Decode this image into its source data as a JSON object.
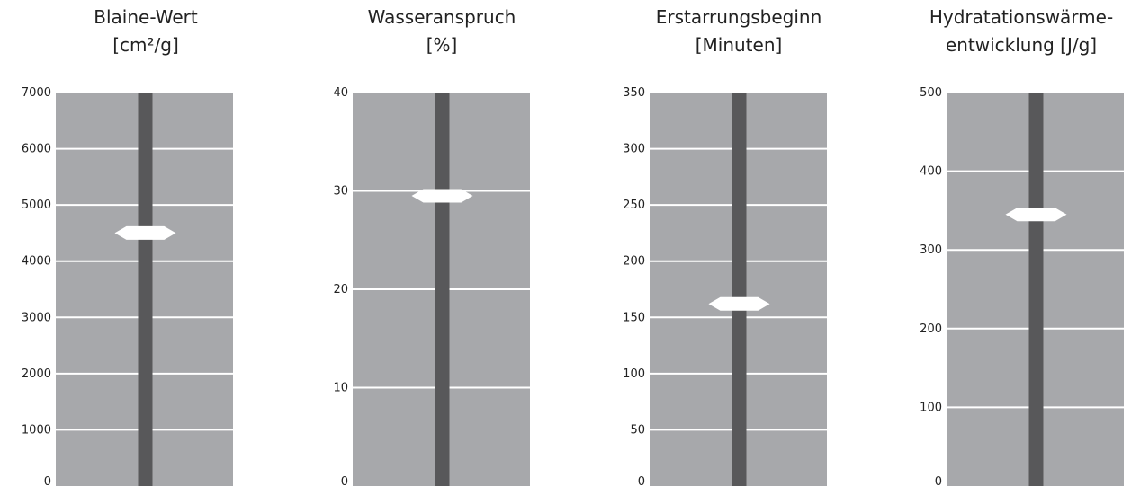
{
  "colors": {
    "panel": "#a7a8ab",
    "gridline": "#ffffff",
    "bar": "#58585a",
    "marker": "#ffffff",
    "text": "#222222"
  },
  "chart_data": [
    {
      "type": "bar",
      "title_line1": "Blaine-Wert",
      "title_line2": "[cm²/g]",
      "ylim": [
        0,
        7000
      ],
      "yticks": [
        0,
        1000,
        2000,
        3000,
        4000,
        5000,
        6000,
        7000
      ],
      "value": 4500
    },
    {
      "type": "bar",
      "title_line1": "Wasseranspruch",
      "title_line2": "[%]",
      "ylim": [
        0,
        40
      ],
      "yticks": [
        0,
        10,
        20,
        30,
        40
      ],
      "value": 29.5
    },
    {
      "type": "bar",
      "title_line1": "Erstarrungsbeginn",
      "title_line2": "[Minuten]",
      "ylim": [
        0,
        350
      ],
      "yticks": [
        0,
        50,
        100,
        150,
        200,
        250,
        300,
        350
      ],
      "value": 162
    },
    {
      "type": "bar",
      "title_line1": "Hydratationswärme-",
      "title_line2": "entwicklung [J/g]",
      "ylim": [
        0,
        500
      ],
      "yticks": [
        0,
        100,
        200,
        300,
        400,
        500
      ],
      "value": 345
    }
  ]
}
